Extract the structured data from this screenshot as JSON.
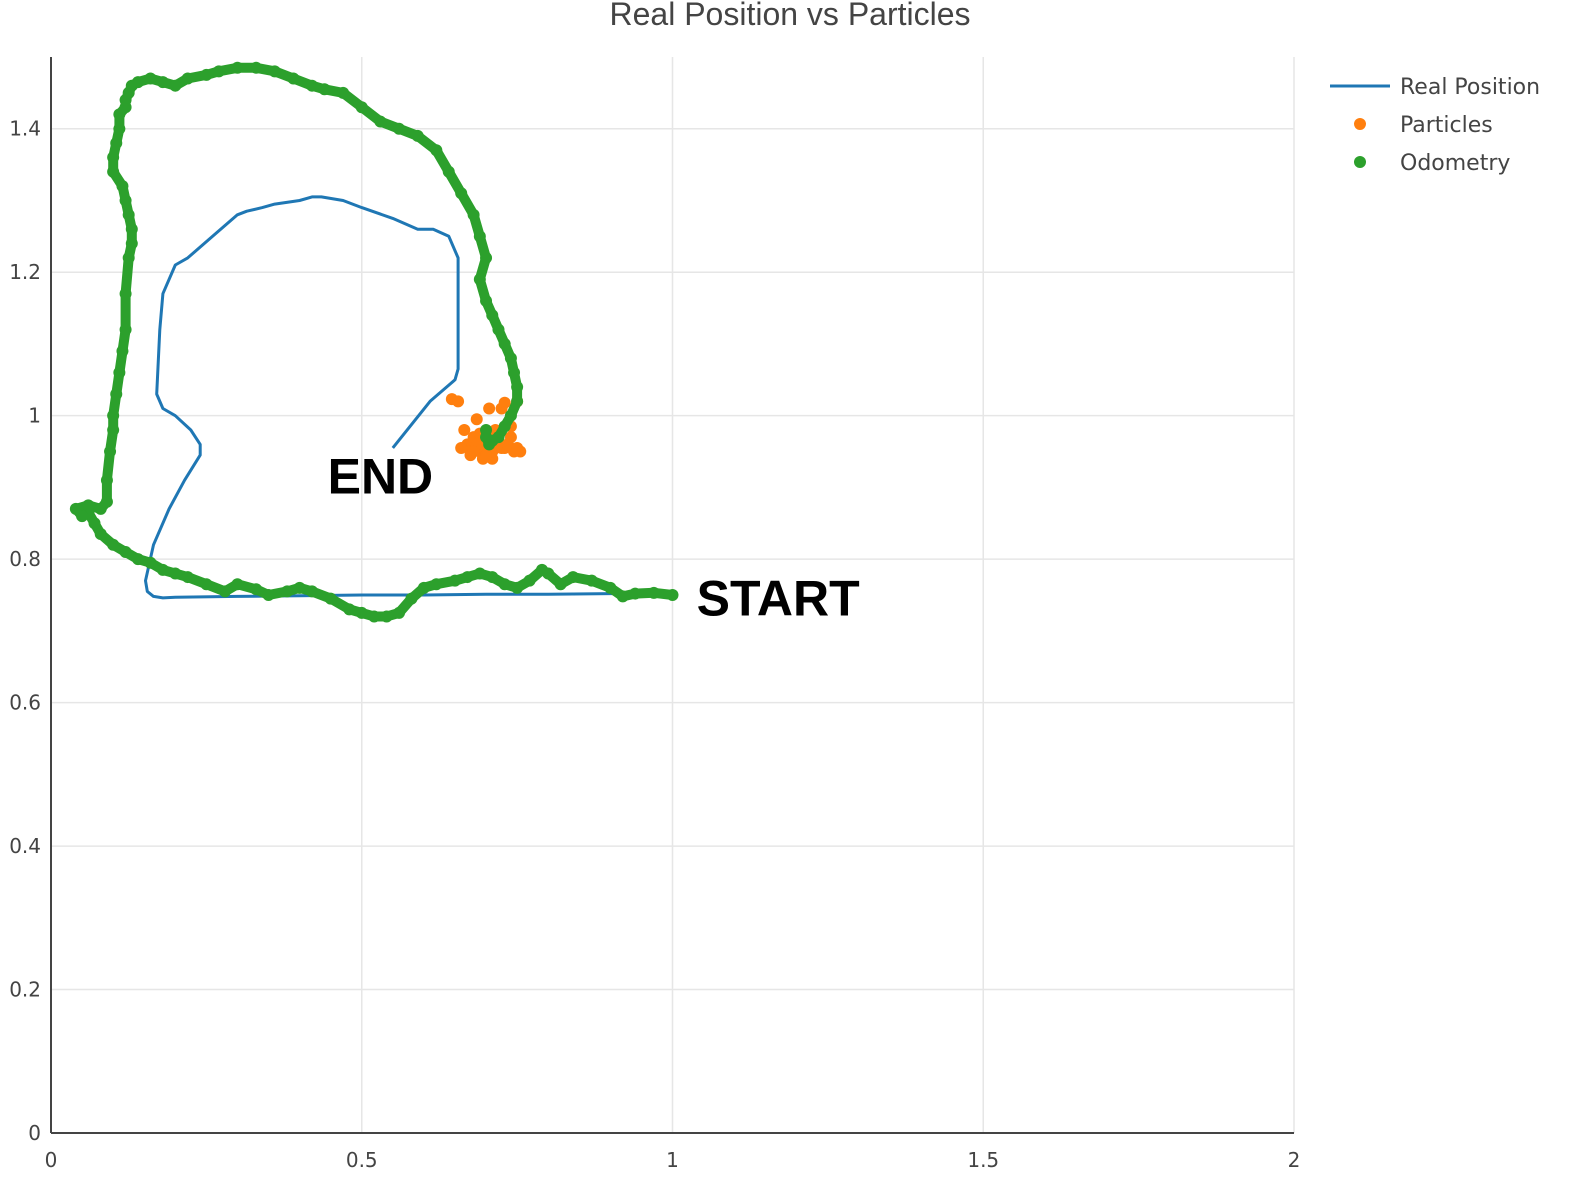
{
  "chart_data": {
    "type": "scatter",
    "title": "Real Position vs Particles",
    "xlabel": "",
    "ylabel": "",
    "xlim": [
      0,
      2
    ],
    "ylim": [
      0,
      1.5
    ],
    "x_ticks": [
      0,
      0.5,
      1,
      1.5,
      2
    ],
    "x_tick_labels": [
      "0",
      "0.5",
      "1",
      "1.5",
      "2"
    ],
    "y_ticks": [
      0,
      0.2,
      0.4,
      0.6,
      0.8,
      1,
      1.2,
      1.4
    ],
    "y_tick_labels": [
      "0",
      "0.2",
      "0.4",
      "0.6",
      "0.8",
      "1",
      "1.2",
      "1.4"
    ],
    "grid": true,
    "legend_position": "top-right",
    "colors": {
      "real": "#1f77b4",
      "particles": "#ff7f0e",
      "odometry": "#2ca02c"
    },
    "series": [
      {
        "name": "Real Position",
        "mode": "line",
        "x": [
          1.0,
          0.9,
          0.8,
          0.7,
          0.6,
          0.5,
          0.4,
          0.3,
          0.2,
          0.18,
          0.165,
          0.155,
          0.152,
          0.165,
          0.19,
          0.215,
          0.24,
          0.24,
          0.225,
          0.2,
          0.18,
          0.17,
          0.175,
          0.18,
          0.2,
          0.22,
          0.26,
          0.3,
          0.315,
          0.34,
          0.36,
          0.4,
          0.42,
          0.435,
          0.47,
          0.5,
          0.55,
          0.59,
          0.6,
          0.615,
          0.64,
          0.655,
          0.655,
          0.655,
          0.65,
          0.61,
          0.55
        ],
        "y": [
          0.752,
          0.752,
          0.751,
          0.751,
          0.75,
          0.75,
          0.749,
          0.748,
          0.747,
          0.746,
          0.748,
          0.755,
          0.77,
          0.82,
          0.87,
          0.91,
          0.945,
          0.96,
          0.98,
          1.0,
          1.01,
          1.03,
          1.12,
          1.17,
          1.21,
          1.22,
          1.25,
          1.28,
          1.285,
          1.29,
          1.295,
          1.3,
          1.305,
          1.305,
          1.3,
          1.29,
          1.275,
          1.26,
          1.26,
          1.26,
          1.25,
          1.22,
          1.15,
          1.065,
          1.05,
          1.02,
          0.955
        ]
      },
      {
        "name": "Particles",
        "mode": "markers",
        "x": [
          0.645,
          0.655,
          0.665,
          0.67,
          0.675,
          0.68,
          0.685,
          0.69,
          0.695,
          0.7,
          0.705,
          0.71,
          0.715,
          0.72,
          0.725,
          0.73,
          0.735,
          0.74,
          0.745,
          0.75,
          0.755,
          0.66,
          0.675,
          0.69,
          0.7,
          0.71,
          0.72,
          0.73,
          0.74,
          0.685,
          0.695,
          0.705,
          0.715,
          0.725,
          0.68,
          0.7,
          0.72,
          0.735,
          0.75,
          0.69
        ],
        "y": [
          1.023,
          1.02,
          0.98,
          0.96,
          0.95,
          0.97,
          0.995,
          0.955,
          0.945,
          0.96,
          1.01,
          0.94,
          0.955,
          0.97,
          1.01,
          1.018,
          0.96,
          0.985,
          0.95,
          1.02,
          0.95,
          0.955,
          0.945,
          0.965,
          0.975,
          0.95,
          0.96,
          0.955,
          0.97,
          0.96,
          0.94,
          0.965,
          0.98,
          0.955,
          0.95,
          0.945,
          0.96,
          0.96,
          0.955,
          0.975
        ]
      },
      {
        "name": "Odometry",
        "mode": "markers",
        "x": [
          1.0,
          0.97,
          0.94,
          0.92,
          0.9,
          0.87,
          0.84,
          0.82,
          0.8,
          0.79,
          0.77,
          0.75,
          0.73,
          0.71,
          0.69,
          0.67,
          0.65,
          0.62,
          0.6,
          0.58,
          0.56,
          0.54,
          0.52,
          0.5,
          0.48,
          0.45,
          0.42,
          0.4,
          0.38,
          0.35,
          0.33,
          0.3,
          0.28,
          0.25,
          0.22,
          0.2,
          0.18,
          0.16,
          0.14,
          0.12,
          0.1,
          0.08,
          0.07,
          0.06,
          0.05,
          0.04,
          0.06,
          0.08,
          0.09,
          0.09,
          0.095,
          0.1,
          0.1,
          0.105,
          0.11,
          0.115,
          0.12,
          0.12,
          0.125,
          0.13,
          0.13,
          0.125,
          0.12,
          0.115,
          0.1,
          0.1,
          0.105,
          0.11,
          0.11,
          0.12,
          0.12,
          0.125,
          0.13,
          0.14,
          0.16,
          0.18,
          0.2,
          0.22,
          0.25,
          0.27,
          0.3,
          0.33,
          0.36,
          0.39,
          0.42,
          0.44,
          0.47,
          0.5,
          0.53,
          0.56,
          0.59,
          0.62,
          0.64,
          0.66,
          0.68,
          0.69,
          0.7,
          0.69,
          0.7,
          0.71,
          0.72,
          0.73,
          0.74,
          0.745,
          0.75,
          0.75,
          0.74,
          0.73,
          0.72,
          0.71,
          0.705,
          0.7,
          0.7
        ],
        "y": [
          0.75,
          0.753,
          0.752,
          0.748,
          0.76,
          0.77,
          0.775,
          0.765,
          0.78,
          0.785,
          0.77,
          0.76,
          0.765,
          0.775,
          0.78,
          0.775,
          0.77,
          0.765,
          0.76,
          0.745,
          0.725,
          0.72,
          0.72,
          0.725,
          0.73,
          0.745,
          0.755,
          0.76,
          0.755,
          0.75,
          0.758,
          0.765,
          0.755,
          0.765,
          0.775,
          0.78,
          0.785,
          0.795,
          0.8,
          0.81,
          0.82,
          0.835,
          0.85,
          0.865,
          0.86,
          0.87,
          0.875,
          0.87,
          0.88,
          0.91,
          0.95,
          0.98,
          1.0,
          1.03,
          1.06,
          1.09,
          1.12,
          1.17,
          1.22,
          1.24,
          1.26,
          1.28,
          1.3,
          1.32,
          1.34,
          1.36,
          1.38,
          1.4,
          1.42,
          1.43,
          1.44,
          1.45,
          1.46,
          1.465,
          1.47,
          1.465,
          1.46,
          1.47,
          1.475,
          1.48,
          1.485,
          1.485,
          1.48,
          1.47,
          1.46,
          1.455,
          1.45,
          1.43,
          1.41,
          1.4,
          1.39,
          1.37,
          1.34,
          1.31,
          1.28,
          1.25,
          1.22,
          1.19,
          1.16,
          1.14,
          1.12,
          1.1,
          1.08,
          1.06,
          1.04,
          1.02,
          1.0,
          0.985,
          0.97,
          0.965,
          0.96,
          0.97,
          0.98
        ]
      }
    ],
    "annotations": [
      {
        "text": "END",
        "x": 0.53,
        "y": 0.915
      },
      {
        "text": "START",
        "x": 1.17,
        "y": 0.745
      }
    ]
  }
}
